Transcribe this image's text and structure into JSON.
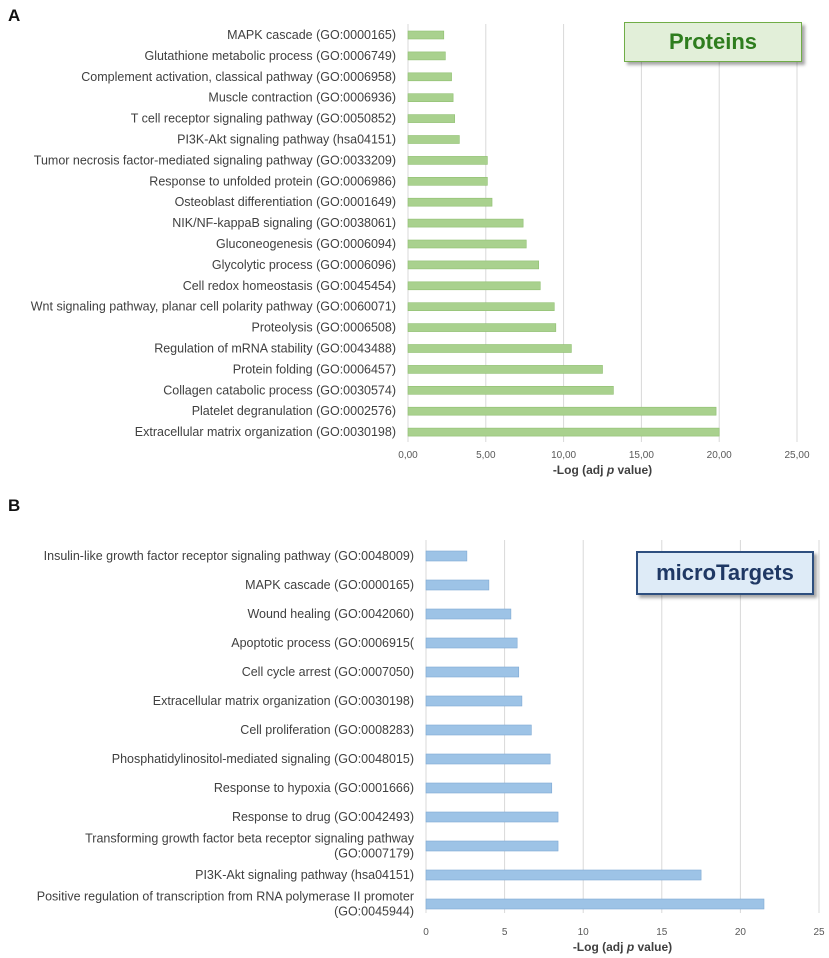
{
  "colors": {
    "proteins_bar": "#a9d18e",
    "proteins_bar_edge": "#8fbf70",
    "proteins_badge_bg": "#e2efd9",
    "proteins_badge_text": "#2e7d1e",
    "proteins_badge_border": "#70ad47",
    "micro_bar": "#9dc3e6",
    "micro_bar_edge": "#7fa9d3",
    "micro_badge_bg": "#deebf7",
    "micro_badge_text": "#1f3864",
    "micro_badge_border": "#2e4f7f",
    "grid": "#d9d9d9"
  },
  "panel_a": {
    "letter": "A",
    "badge": "Proteins"
  },
  "panel_b": {
    "letter": "B",
    "badge": "microTargets"
  },
  "chart_data": [
    {
      "type": "bar",
      "orientation": "horizontal",
      "panel": "A",
      "title": "Proteins",
      "xlabel_prefix": "-Log (adj ",
      "xlabel_italic": "p",
      "xlabel_suffix": " value)",
      "xlim": [
        0,
        25
      ],
      "xticks": [
        0,
        5,
        10,
        15,
        20,
        25
      ],
      "xtick_labels": [
        "0,00",
        "5,00",
        "10,00",
        "15,00",
        "20,00",
        "25,00"
      ],
      "categories": [
        [
          "MAPK cascade (GO:0000165)"
        ],
        [
          "Glutathione metabolic process (GO:0006749)"
        ],
        [
          "Complement activation, classical pathway (GO:0006958)"
        ],
        [
          "Muscle contraction (GO:0006936)"
        ],
        [
          "T cell receptor signaling pathway (GO:0050852)"
        ],
        [
          "PI3K-Akt signaling pathway (hsa04151)"
        ],
        [
          "Tumor necrosis factor-mediated signaling pathway (GO:0033209)"
        ],
        [
          "Response to unfolded protein (GO:0006986)"
        ],
        [
          "Osteoblast differentiation (GO:0001649)"
        ],
        [
          "NIK/NF-kappaB signaling (GO:0038061)"
        ],
        [
          "Gluconeogenesis (GO:0006094)"
        ],
        [
          "Glycolytic process (GO:0006096)"
        ],
        [
          "Cell redox homeostasis (GO:0045454)"
        ],
        [
          "Wnt signaling pathway, planar cell polarity pathway (GO:0060071)"
        ],
        [
          "Proteolysis (GO:0006508)"
        ],
        [
          "Regulation of mRNA stability (GO:0043488)"
        ],
        [
          "Protein folding (GO:0006457)"
        ],
        [
          "Collagen catabolic process (GO:0030574)"
        ],
        [
          "Platelet degranulation (GO:0002576)"
        ],
        [
          "Extracellular matrix organization (GO:0030198)"
        ]
      ],
      "values": [
        2.3,
        2.4,
        2.8,
        2.9,
        3.0,
        3.3,
        5.1,
        5.1,
        5.4,
        7.4,
        7.6,
        8.4,
        8.5,
        9.4,
        9.5,
        10.5,
        12.5,
        13.2,
        19.8,
        20.0
      ]
    },
    {
      "type": "bar",
      "orientation": "horizontal",
      "panel": "B",
      "title": "microTargets",
      "xlabel_prefix": "-Log (adj ",
      "xlabel_italic": "p",
      "xlabel_suffix": " value)",
      "xlim": [
        0,
        25
      ],
      "xticks": [
        0,
        5,
        10,
        15,
        20,
        25
      ],
      "xtick_labels": [
        "0",
        "5",
        "10",
        "15",
        "20",
        "25"
      ],
      "categories": [
        [
          "Insulin-like growth factor receptor signaling pathway (GO:0048009)"
        ],
        [
          "MAPK cascade (GO:0000165)"
        ],
        [
          "Wound healing (GO:0042060)"
        ],
        [
          "Apoptotic process (GO:0006915("
        ],
        [
          "Cell cycle arrest (GO:0007050)"
        ],
        [
          "Extracellular matrix organization (GO:0030198)"
        ],
        [
          "Cell proliferation (GO:0008283)"
        ],
        [
          "Phosphatidylinositol-mediated signaling (GO:0048015)"
        ],
        [
          "Response to hypoxia (GO:0001666)"
        ],
        [
          "Response to drug (GO:0042493)"
        ],
        [
          "Transforming growth factor beta receptor signaling pathway",
          "(GO:0007179)"
        ],
        [
          "PI3K-Akt signaling pathway (hsa04151)"
        ],
        [
          "Positive regulation of transcription from RNA polymerase II promoter",
          "(GO:0045944)"
        ]
      ],
      "values": [
        2.6,
        4.0,
        5.4,
        5.8,
        5.9,
        6.1,
        6.7,
        7.9,
        8.0,
        8.4,
        8.4,
        17.5,
        21.5
      ]
    }
  ]
}
